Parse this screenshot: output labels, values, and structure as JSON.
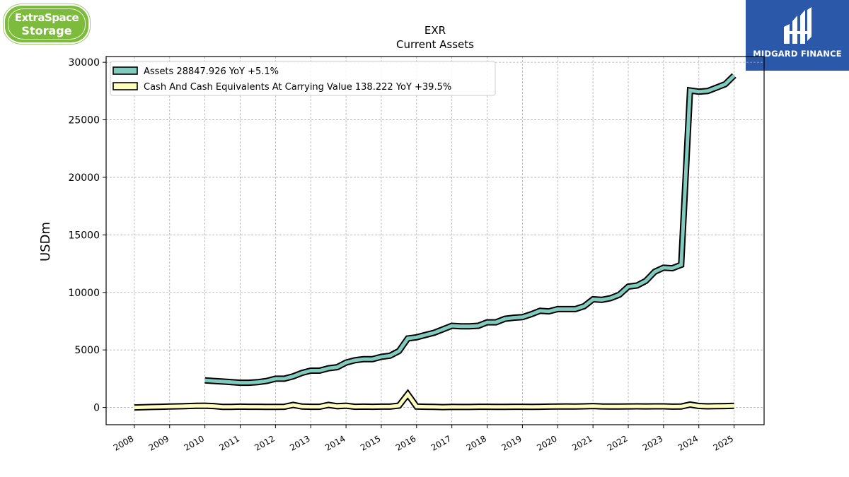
{
  "logos": {
    "left_line1": "ExtraSpace",
    "left_line2": "Storage",
    "right_brand": "MIDGARD FINANCE"
  },
  "chart_data": {
    "type": "line",
    "title": "EXR",
    "subtitle": "Current  Assets",
    "ylabel": "USDm",
    "xlabel": "",
    "ylim": [
      -1500,
      30500
    ],
    "xlim": [
      2007.2,
      2025.85
    ],
    "yticks": [
      0,
      5000,
      10000,
      15000,
      20000,
      25000,
      30000
    ],
    "ytick_labels": [
      "0",
      "5000",
      "10000",
      "15000",
      "20000",
      "25000",
      "30000"
    ],
    "xticks": [
      2008,
      2009,
      2010,
      2011,
      2012,
      2013,
      2014,
      2015,
      2016,
      2017,
      2018,
      2019,
      2020,
      2021,
      2022,
      2023,
      2024,
      2025
    ],
    "xtick_labels": [
      "2008",
      "2009",
      "2010",
      "2011",
      "2012",
      "2013",
      "2014",
      "2015",
      "2016",
      "2017",
      "2018",
      "2019",
      "2020",
      "2021",
      "2022",
      "2023",
      "2024",
      "2025"
    ],
    "grid": true,
    "legend_position": "top-left",
    "series": [
      {
        "name": "Assets  28847.926 YoY +5.1%",
        "color": "#80cbbe",
        "x": [
          2010.0,
          2010.25,
          2010.5,
          2010.75,
          2011.0,
          2011.25,
          2011.5,
          2011.75,
          2012.0,
          2012.25,
          2012.5,
          2012.75,
          2013.0,
          2013.25,
          2013.5,
          2013.75,
          2014.0,
          2014.25,
          2014.5,
          2014.75,
          2015.0,
          2015.25,
          2015.5,
          2015.75,
          2016.0,
          2016.25,
          2016.5,
          2016.75,
          2017.0,
          2017.25,
          2017.5,
          2017.75,
          2018.0,
          2018.25,
          2018.5,
          2018.75,
          2019.0,
          2019.25,
          2019.5,
          2019.75,
          2020.0,
          2020.25,
          2020.5,
          2020.75,
          2021.0,
          2021.25,
          2021.5,
          2021.75,
          2022.0,
          2022.25,
          2022.5,
          2022.75,
          2023.0,
          2023.25,
          2023.5,
          2023.75,
          2024.0,
          2024.25,
          2024.5,
          2024.75,
          2025.0
        ],
        "y": [
          2350,
          2300,
          2250,
          2200,
          2150,
          2150,
          2200,
          2300,
          2500,
          2500,
          2700,
          3000,
          3200,
          3200,
          3400,
          3500,
          3900,
          4100,
          4200,
          4200,
          4400,
          4500,
          4900,
          6000,
          6100,
          6300,
          6500,
          6800,
          7100,
          7050,
          7050,
          7100,
          7400,
          7400,
          7700,
          7800,
          7850,
          8100,
          8400,
          8350,
          8550,
          8550,
          8550,
          8800,
          9400,
          9350,
          9500,
          9800,
          10500,
          10600,
          11000,
          11800,
          12150,
          12100,
          12400,
          27550,
          27450,
          27500,
          27800,
          28100,
          28850
        ]
      },
      {
        "name": "Cash And Cash Equivalents At Carrying Value  138.222 YoY +39.5%",
        "color": "#ffffbf",
        "x": [
          2008.0,
          2008.25,
          2008.5,
          2008.75,
          2009.0,
          2009.25,
          2009.5,
          2009.75,
          2010.0,
          2010.25,
          2010.5,
          2010.75,
          2011.0,
          2011.25,
          2011.5,
          2011.75,
          2012.0,
          2012.25,
          2012.5,
          2012.75,
          2013.0,
          2013.25,
          2013.5,
          2013.75,
          2014.0,
          2014.25,
          2014.5,
          2014.75,
          2015.0,
          2015.25,
          2015.5,
          2015.75,
          2016.0,
          2016.25,
          2016.5,
          2016.75,
          2017.0,
          2017.25,
          2017.5,
          2017.75,
          2018.0,
          2018.25,
          2018.5,
          2018.75,
          2019.0,
          2019.25,
          2019.5,
          2019.75,
          2020.0,
          2020.25,
          2020.5,
          2020.75,
          2021.0,
          2021.25,
          2021.5,
          2021.75,
          2022.0,
          2022.25,
          2022.5,
          2022.75,
          2023.0,
          2023.25,
          2023.5,
          2023.75,
          2024.0,
          2024.25,
          2024.5,
          2024.75,
          2025.0
        ],
        "y": [
          0,
          20,
          40,
          60,
          80,
          100,
          120,
          140,
          150,
          120,
          50,
          50,
          70,
          60,
          60,
          50,
          50,
          60,
          220,
          80,
          60,
          60,
          220,
          110,
          150,
          60,
          70,
          60,
          70,
          70,
          160,
          1150,
          80,
          60,
          50,
          30,
          50,
          40,
          40,
          60,
          60,
          50,
          50,
          60,
          60,
          50,
          60,
          70,
          80,
          90,
          80,
          100,
          120,
          90,
          80,
          80,
          90,
          100,
          90,
          100,
          100,
          70,
          80,
          250,
          130,
          100,
          110,
          120,
          140
        ]
      }
    ]
  }
}
